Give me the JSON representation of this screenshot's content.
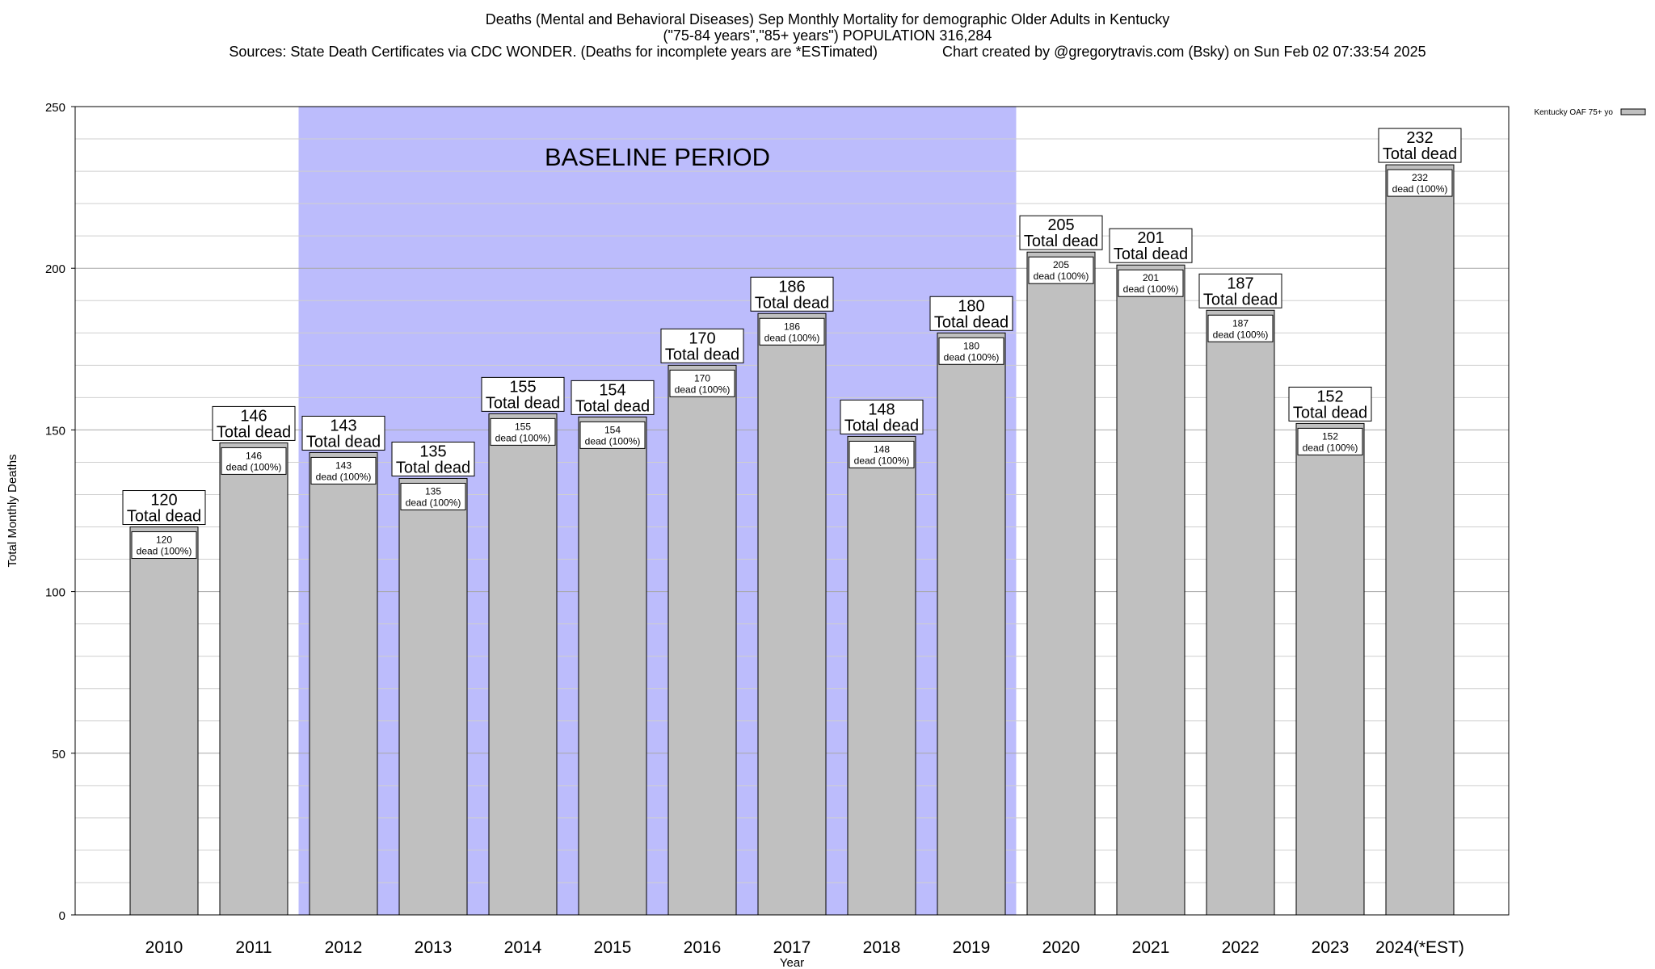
{
  "chart_data": {
    "type": "bar",
    "title": "Deaths (Mental and Behavioral Diseases) Sep Monthly Mortality for demographic Older Adults in Kentucky",
    "subtitle": "(\"75-84 years\",\"85+ years\") POPULATION 316,284",
    "source_line": "Sources: State Death Certificates via CDC WONDER. (Deaths for incomplete years are *ESTimated)                Chart created by @gregorytravis.com (Bsky) on Sun Feb 02 07:33:54 2025",
    "xlabel": "Year",
    "ylabel": "Total Monthly Deaths",
    "ylim": [
      0,
      250
    ],
    "yticks": [
      0,
      50,
      100,
      150,
      200,
      250
    ],
    "grid": true,
    "legend_position": "top-right",
    "legend_label": "Kentucky OAF 75+ yo",
    "bar_color": "#c0c0c0",
    "baseline_color": "#bcbcfc",
    "baseline_label": "BASELINE PERIOD",
    "baseline_range": [
      "2012",
      "2019"
    ],
    "categories": [
      "2010",
      "2011",
      "2012",
      "2013",
      "2014",
      "2015",
      "2016",
      "2017",
      "2018",
      "2019",
      "2020",
      "2021",
      "2022",
      "2023",
      "2024(*EST)"
    ],
    "series": [
      {
        "name": "Kentucky OAF 75+ yo",
        "values": [
          120,
          146,
          143,
          135,
          155,
          154,
          170,
          186,
          148,
          180,
          205,
          201,
          187,
          152,
          232
        ]
      }
    ],
    "outer_label_suffix": "Total dead",
    "inner_label_suffix": "dead (100%)"
  }
}
